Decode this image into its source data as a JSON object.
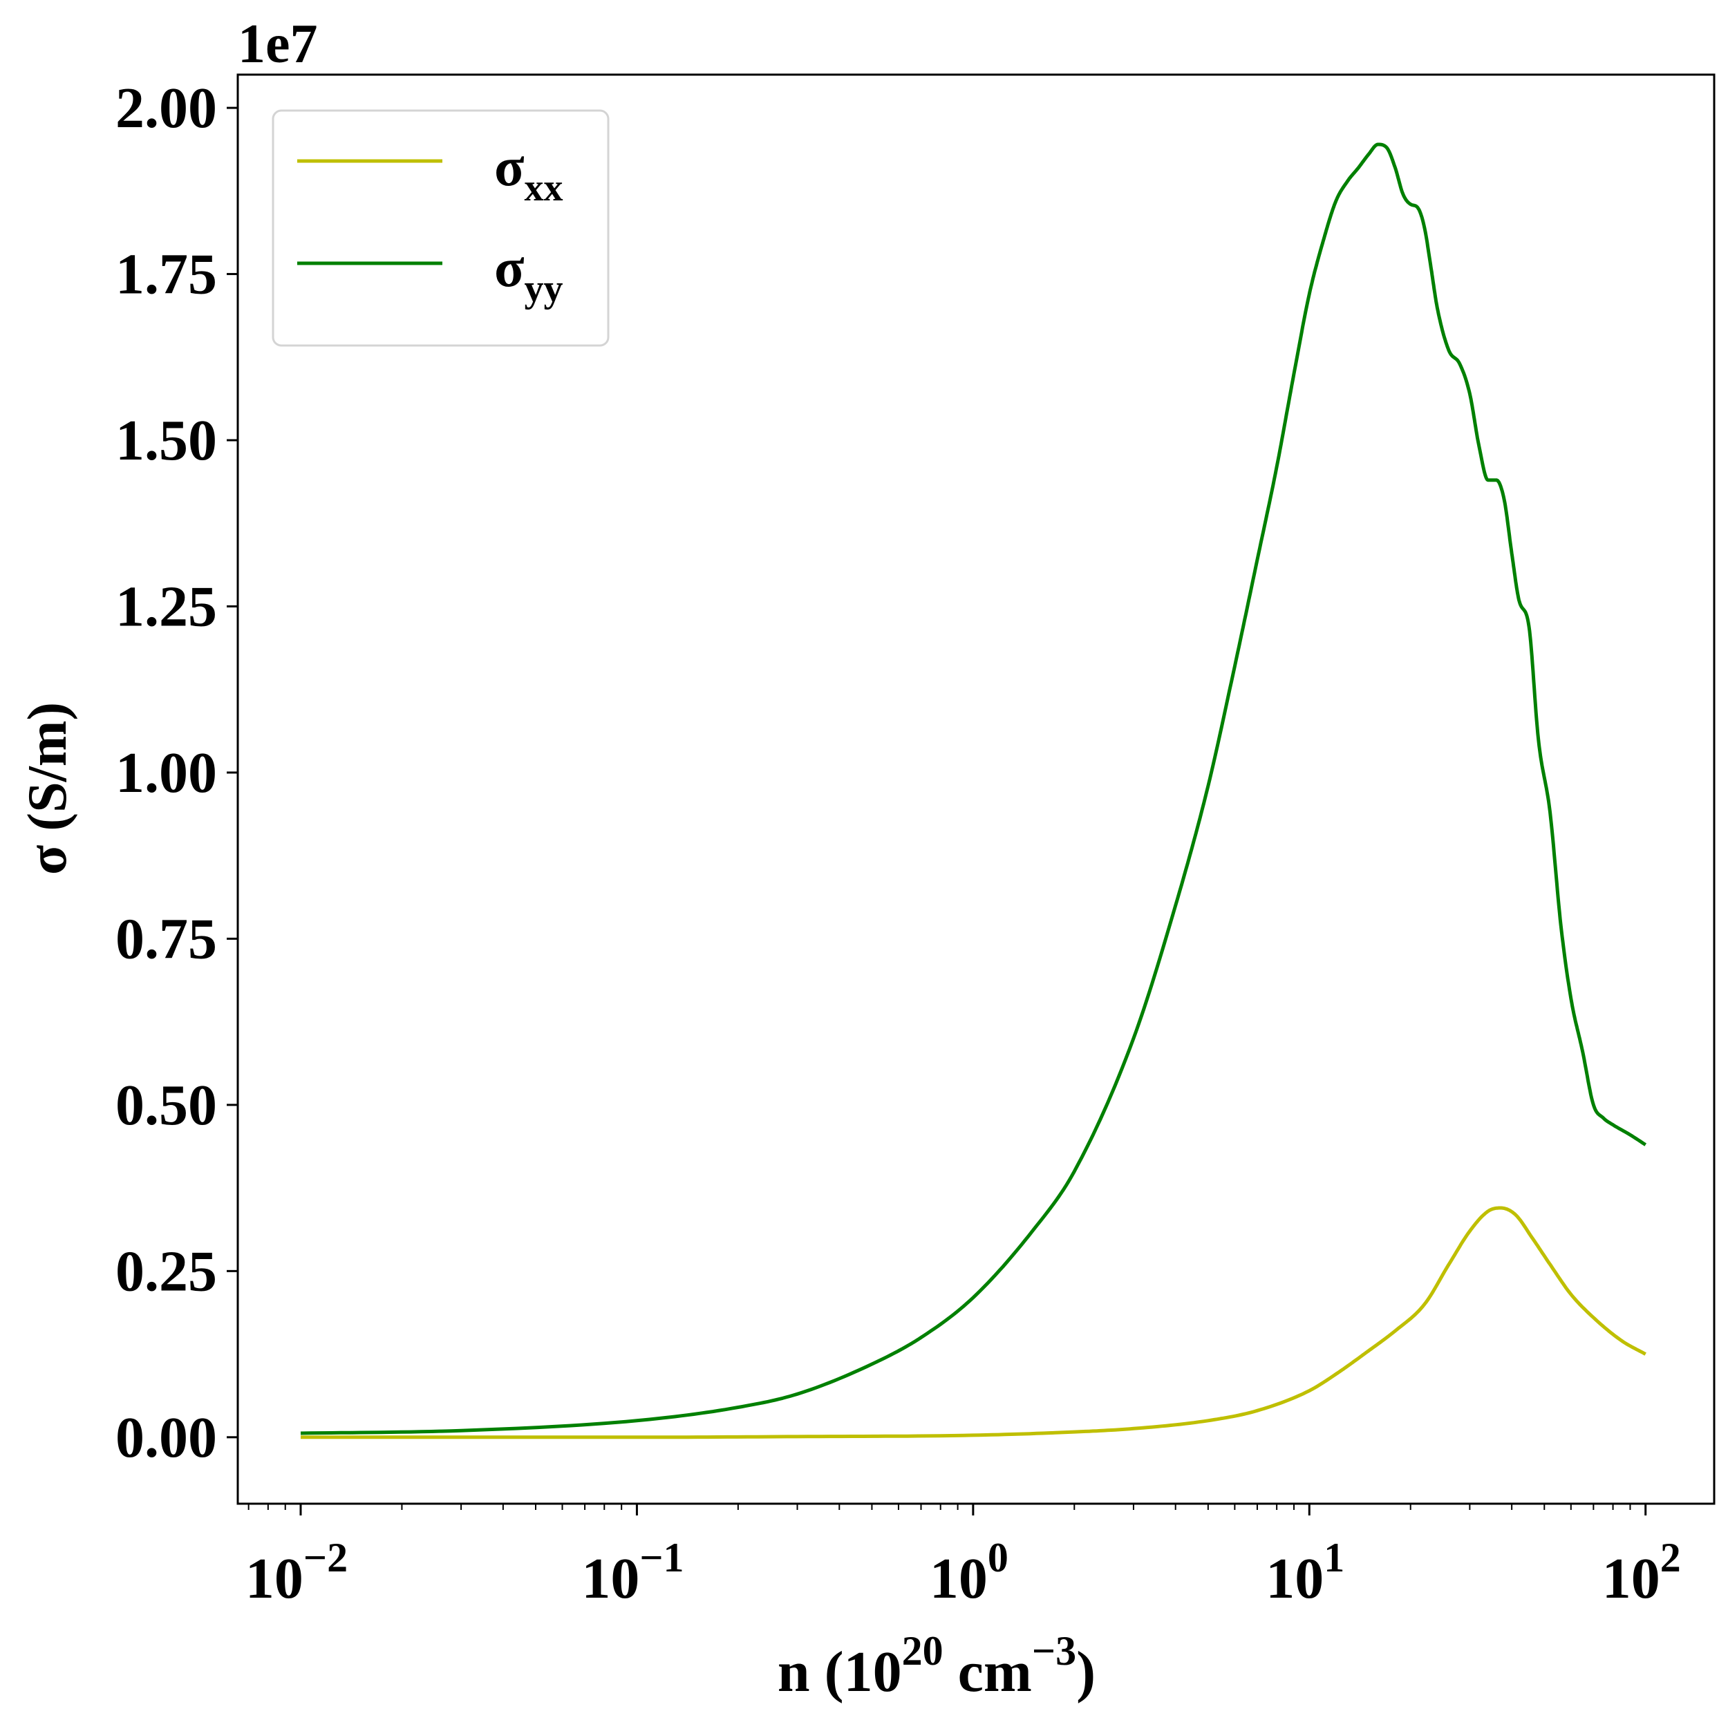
{
  "chart_data": {
    "type": "line",
    "xscale": "log",
    "xlim": [
      0.0065,
      160
    ],
    "ylim": [
      -0.1,
      2.05
    ],
    "y_scale_label": "1e7",
    "xlabel": {
      "text": "n (10",
      "sup1": "20",
      "mid": " cm",
      "sup2": "−3",
      "end": ")"
    },
    "ylabel": "σ (S/m)",
    "x_major_ticks": [
      {
        "value": 0.01,
        "base": "10",
        "exp": "−2"
      },
      {
        "value": 0.1,
        "base": "10",
        "exp": "−1"
      },
      {
        "value": 1,
        "base": "10",
        "exp": "0"
      },
      {
        "value": 10,
        "base": "10",
        "exp": "1"
      },
      {
        "value": 100,
        "base": "10",
        "exp": "2"
      }
    ],
    "y_ticks": [
      {
        "value": 0.0,
        "label": "0.00"
      },
      {
        "value": 0.25,
        "label": "0.25"
      },
      {
        "value": 0.5,
        "label": "0.50"
      },
      {
        "value": 0.75,
        "label": "0.75"
      },
      {
        "value": 1.0,
        "label": "1.00"
      },
      {
        "value": 1.25,
        "label": "1.25"
      },
      {
        "value": 1.5,
        "label": "1.50"
      },
      {
        "value": 1.75,
        "label": "1.75"
      },
      {
        "value": 2.0,
        "label": "2.00"
      }
    ],
    "grid": false,
    "legend": {
      "position": "top-left",
      "entries": [
        {
          "symbol": "σ",
          "sub": "xx",
          "color": "#bfbf00"
        },
        {
          "symbol": "σ",
          "sub": "yy",
          "color": "#008000"
        }
      ]
    },
    "series": [
      {
        "name": "σxx",
        "color": "#bfbf00",
        "x": [
          0.01,
          0.03,
          0.1,
          0.3,
          1,
          2,
          3,
          5,
          7,
          10,
          12,
          15,
          18,
          22,
          26,
          30,
          34,
          37,
          41,
          46,
          52,
          60,
          70,
          85,
          100
        ],
        "y": [
          0.0,
          0.0,
          0.0,
          0.001,
          0.003,
          0.008,
          0.013,
          0.025,
          0.04,
          0.07,
          0.095,
          0.13,
          0.16,
          0.2,
          0.26,
          0.31,
          0.34,
          0.345,
          0.335,
          0.3,
          0.26,
          0.215,
          0.18,
          0.145,
          0.125
        ]
      },
      {
        "name": "σyy",
        "color": "#008000",
        "x": [
          0.01,
          0.03,
          0.1,
          0.2,
          0.3,
          0.5,
          0.7,
          1,
          1.5,
          2,
          3,
          4,
          5,
          6,
          7,
          8,
          9,
          10,
          11,
          12,
          13,
          14,
          15,
          16,
          17,
          18,
          19,
          20,
          21,
          22,
          23,
          24,
          26,
          28,
          30,
          32,
          34,
          36,
          38,
          40,
          42,
          45,
          48,
          52,
          56,
          60,
          65,
          70,
          75,
          80,
          90,
          100
        ],
        "y": [
          0.006,
          0.01,
          0.025,
          0.045,
          0.065,
          0.11,
          0.15,
          0.21,
          0.31,
          0.4,
          0.6,
          0.8,
          0.98,
          1.16,
          1.32,
          1.46,
          1.6,
          1.72,
          1.8,
          1.86,
          1.89,
          1.91,
          1.93,
          1.945,
          1.94,
          1.91,
          1.87,
          1.855,
          1.85,
          1.82,
          1.76,
          1.7,
          1.635,
          1.615,
          1.57,
          1.49,
          1.44,
          1.44,
          1.41,
          1.33,
          1.26,
          1.22,
          1.05,
          0.94,
          0.77,
          0.66,
          0.58,
          0.5,
          0.48,
          0.47,
          0.455,
          0.44
        ]
      }
    ]
  }
}
